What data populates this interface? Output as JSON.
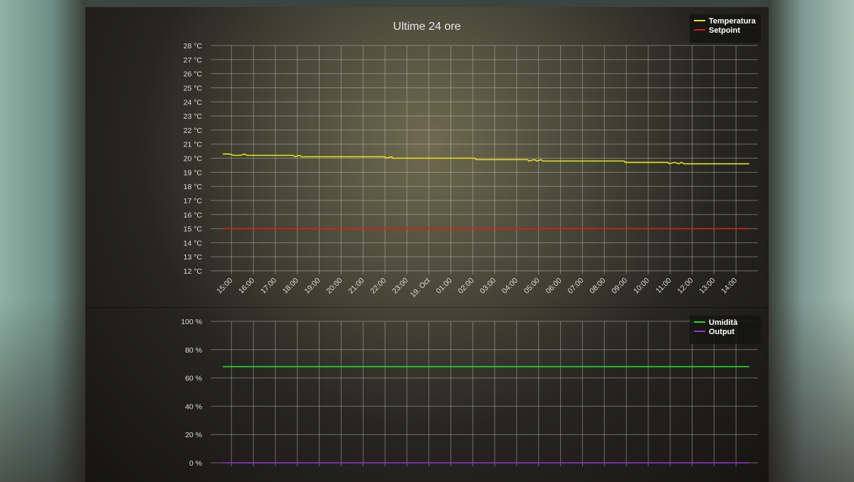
{
  "chart_data": [
    {
      "type": "line",
      "title": "Ultime 24 ore",
      "y_unit": "°C",
      "ylim": [
        12,
        28
      ],
      "y_ticks": [
        "12 °C",
        "13 °C",
        "14 °C",
        "15 °C",
        "16 °C",
        "17 °C",
        "18 °C",
        "19 °C",
        "20 °C",
        "21 °C",
        "22 °C",
        "23 °C",
        "24 °C",
        "25 °C",
        "26 °C",
        "27 °C",
        "28 °C"
      ],
      "x_ticks": [
        "15:00",
        "16:00",
        "17:00",
        "18:00",
        "19:00",
        "20:00",
        "21:00",
        "22:00",
        "23:00",
        "19. Oct",
        "01:00",
        "02:00",
        "03:00",
        "04:00",
        "05:00",
        "06:00",
        "07:00",
        "08:00",
        "09:00",
        "10:00",
        "11:00",
        "12:00",
        "13:00",
        "14:00"
      ],
      "grid": true,
      "legend_position": "top-right",
      "series": [
        {
          "name": "Temperatura",
          "color": "#e6e619",
          "points": [
            [
              14.6,
              20.3
            ],
            [
              14.9,
              20.3
            ],
            [
              15.1,
              20.2
            ],
            [
              15.4,
              20.2
            ],
            [
              15.6,
              20.3
            ],
            [
              15.7,
              20.2
            ],
            [
              17.8,
              20.2
            ],
            [
              17.9,
              20.1
            ],
            [
              18.1,
              20.2
            ],
            [
              18.2,
              20.1
            ],
            [
              22.0,
              20.1
            ],
            [
              22.05,
              20.0
            ],
            [
              22.3,
              20.1
            ],
            [
              22.35,
              20.0
            ],
            [
              26.1,
              20.0
            ],
            [
              26.15,
              19.9
            ],
            [
              28.5,
              19.9
            ],
            [
              28.55,
              19.8
            ],
            [
              28.8,
              19.9
            ],
            [
              28.95,
              19.8
            ],
            [
              29.1,
              19.9
            ],
            [
              29.2,
              19.8
            ],
            [
              32.9,
              19.8
            ],
            [
              32.95,
              19.7
            ],
            [
              33.1,
              19.7
            ],
            [
              34.9,
              19.7
            ],
            [
              34.95,
              19.6
            ],
            [
              35.2,
              19.7
            ],
            [
              35.4,
              19.6
            ],
            [
              35.5,
              19.7
            ],
            [
              35.65,
              19.6
            ],
            [
              38.6,
              19.6
            ]
          ]
        },
        {
          "name": "Setpoint",
          "color": "#e01a1a",
          "points": [
            [
              14.6,
              15
            ],
            [
              38.6,
              15
            ]
          ]
        }
      ]
    },
    {
      "type": "line",
      "y_unit": "%",
      "ylim": [
        0,
        100
      ],
      "y_ticks": [
        "0 %",
        "20 %",
        "40 %",
        "60 %",
        "80 %",
        "100 %"
      ],
      "grid": true,
      "legend_position": "top-right",
      "series": [
        {
          "name": "Umidità",
          "color": "#22dd22",
          "points": [
            [
              14.6,
              68
            ],
            [
              38.6,
              68
            ]
          ]
        },
        {
          "name": "Output",
          "color": "#9933cc",
          "points": [
            [
              14.6,
              0
            ],
            [
              38.6,
              0
            ]
          ]
        }
      ]
    }
  ]
}
